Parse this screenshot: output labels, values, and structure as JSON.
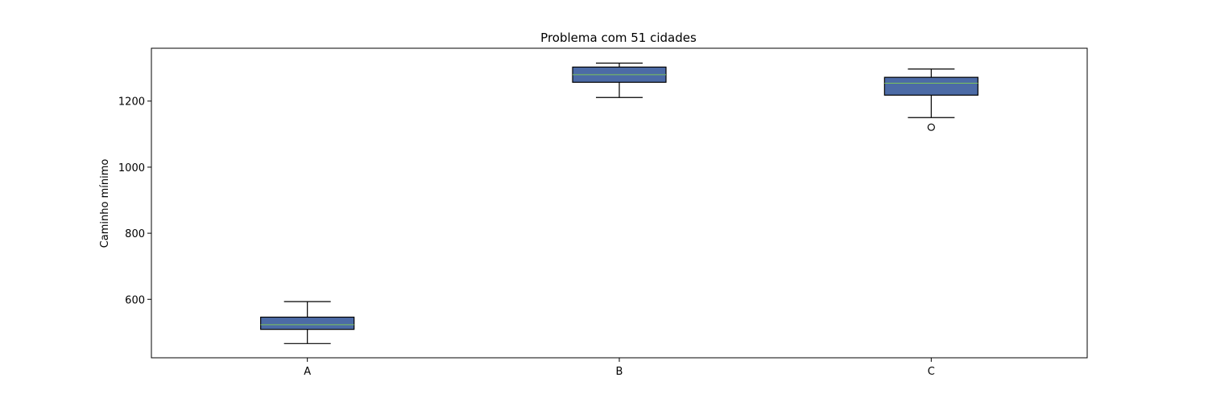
{
  "chart_data": {
    "type": "box",
    "title": "Problema com 51 cidades",
    "xlabel": "",
    "ylabel": "Caminho mínimo",
    "ylim": [
      423,
      1360
    ],
    "yticks": [
      600,
      800,
      1000,
      1200
    ],
    "grid": false,
    "colors": {
      "box_fill": "#4c6ba6",
      "median": "#7cc45a",
      "stroke": "#000000"
    },
    "categories": [
      "A",
      "B",
      "C"
    ],
    "boxes": [
      {
        "label": "A",
        "whislo": 466,
        "q1": 509,
        "med": 523,
        "q3": 546,
        "whishi": 593,
        "fliers": []
      },
      {
        "label": "B",
        "whislo": 1211,
        "q1": 1257,
        "med": 1280,
        "q3": 1303,
        "whishi": 1315,
        "fliers": []
      },
      {
        "label": "C",
        "whislo": 1150,
        "q1": 1218,
        "med": 1254,
        "q3": 1272,
        "whishi": 1297,
        "fliers": [
          1121
        ]
      }
    ]
  }
}
